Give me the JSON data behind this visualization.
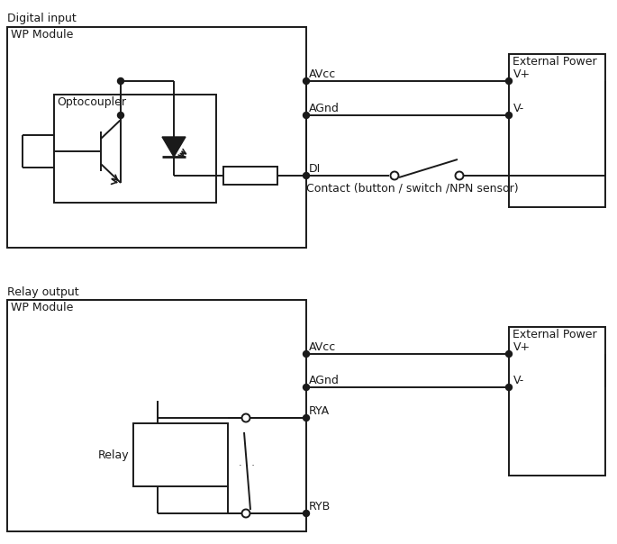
{
  "bg_color": "#ffffff",
  "line_color": "#1a1a1a",
  "text_color": "#1a1a1a",
  "top_section_label": "Digital input",
  "bottom_section_label": "Relay output",
  "wp_module_label": "WP Module",
  "ext_power_label": "External Power",
  "optocoupler_label": "Optocoupler",
  "relay_label": "Relay",
  "avcc_label": "AVcc",
  "agnd_label": "AGnd",
  "di_label": "DI",
  "vplus_label": "V+",
  "vminus_label": "V-",
  "rya_label": "RYA",
  "ryb_label": "RYB",
  "contact_label": "Contact (button / switch /NPN sensor)"
}
